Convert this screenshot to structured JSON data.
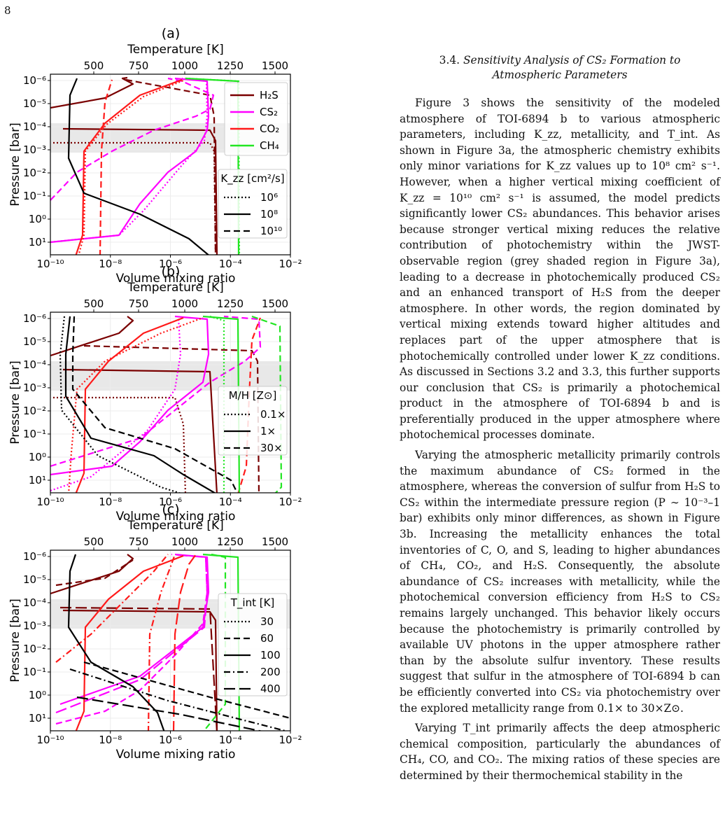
{
  "page": {
    "number": "8"
  },
  "section": {
    "number": "3.4.",
    "title_line1": "Sensitivity Analysis of CS₂ Formation to",
    "title_line2": "Atmospheric Parameters"
  },
  "paragraphs": [
    "Figure 3 shows the sensitivity of the modeled atmosphere of TOI-6894 b to various atmospheric parameters, including K_zz, metallicity, and T_int. As shown in Figure 3a, the atmospheric chemistry exhibits only minor variations for K_zz values up to 10⁸ cm² s⁻¹. However, when a higher vertical mixing coefficient of K_zz = 10¹⁰ cm² s⁻¹ is assumed, the model predicts significantly lower CS₂ abundances. This behavior arises because stronger vertical mixing reduces the relative contribution of photochemistry within the JWST-observable region (grey shaded region in Figure 3a), leading to a decrease in photochemically produced CS₂ and an enhanced transport of H₂S from the deeper atmosphere. In other words, the region dominated by vertical mixing extends toward higher altitudes and replaces part of the upper atmosphere that is photochemically controlled under lower K_zz conditions. As discussed in Sections 3.2 and 3.3, this further supports our conclusion that CS₂ is primarily a photochemical product in the atmosphere of TOI-6894 b and is preferentially produced in the upper atmosphere where photochemical processes dominate.",
    "Varying the atmospheric metallicity primarily controls the maximum abundance of CS₂ formed in the atmosphere, whereas the conversion of sulfur from H₂S to CS₂ within the intermediate pressure region (P ∼ 10⁻³–1 bar) exhibits only minor differences, as shown in Figure 3b. Increasing the metallicity enhances the total inventories of C, O, and S, leading to higher abundances of CH₄, CO₂, and H₂S. Consequently, the absolute abundance of CS₂ increases with metallicity, while the photochemical conversion efficiency from H₂S to CS₂ remains largely unchanged. This behavior likely occurs because the photochemistry is primarily controlled by available UV photons in the upper atmosphere rather than by the absolute sulfur inventory. These results suggest that sulfur in the atmosphere of TOI-6894 b can be efficiently converted into CS₂ via photochemistry over the explored metallicity range from 0.1× to 30×Z⊙.",
    "Varying T_int primarily affects the deep atmospheric chemical composition, particularly the abundances of CH₄, CO, and CO₂. The mixing ratios of these species are determined by their thermochemical stability in the"
  ],
  "figure": {
    "shared": {
      "top_axis_label": "Temperature [K]",
      "top_ticks": [
        "500",
        "750",
        "1000",
        "1250",
        "1500"
      ],
      "x_label": "Volume mixing ratio",
      "x_ticks": [
        "10⁻¹⁰",
        "10⁻⁸",
        "10⁻⁶",
        "10⁻⁴",
        "10⁻²"
      ],
      "y_label": "Pressure [bar]",
      "y_ticks": [
        "10⁻⁶",
        "10⁻⁵",
        "10⁻⁴",
        "10⁻³",
        "10⁻²",
        "10⁻¹",
        "10⁰",
        "10¹"
      ]
    },
    "panels": [
      {
        "id": "(a)",
        "species_legend": [
          {
            "label": "H₂S",
            "color": "#7a0000"
          },
          {
            "label": "CS₂",
            "color": "#ff00ff"
          },
          {
            "label": "CO₂",
            "color": "#ff1a1a"
          },
          {
            "label": "CH₄",
            "color": "#22e622"
          }
        ],
        "style_legend_title": "K_zz [cm²/s]",
        "style_legend": [
          {
            "style": "dotted",
            "label": "10⁶"
          },
          {
            "style": "solid",
            "label": "10⁸"
          },
          {
            "style": "dashed",
            "label": "10¹⁰"
          }
        ]
      },
      {
        "id": "(b)",
        "style_legend_title": "M/H [Z⊙]",
        "style_legend": [
          {
            "style": "dotted",
            "label": "0.1×"
          },
          {
            "style": "solid",
            "label": "1×"
          },
          {
            "style": "dashed",
            "label": "30×"
          }
        ]
      },
      {
        "id": "(c)",
        "style_legend_title": "T_int [K]",
        "style_legend": [
          {
            "style": "dotted",
            "label": "30"
          },
          {
            "style": "dashed",
            "label": "60"
          },
          {
            "style": "solid",
            "label": "100"
          },
          {
            "style": "dashdot",
            "label": "200"
          },
          {
            "style": "longdash",
            "label": "400"
          }
        ]
      }
    ]
  }
}
